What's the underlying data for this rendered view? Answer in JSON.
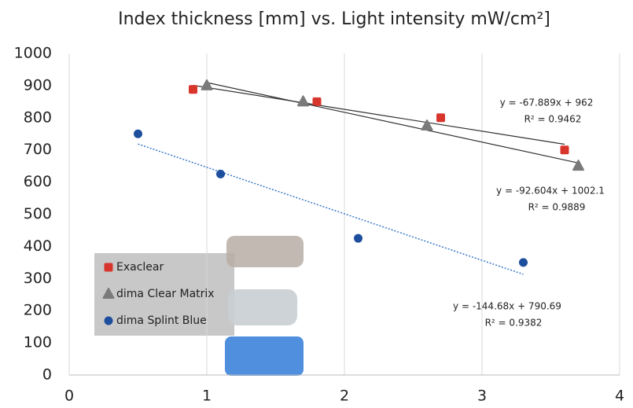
{
  "chart_data": {
    "type": "scatter",
    "title": "Index thickness [mm] vs. Light intensity mW/cm²]",
    "xlim": [
      0,
      4
    ],
    "xticks": [
      0,
      1,
      2,
      3,
      4
    ],
    "ylim": [
      0,
      1000
    ],
    "yticks": [
      0,
      100,
      200,
      300,
      400,
      500,
      600,
      700,
      800,
      900,
      1000
    ],
    "grid": "x",
    "legend": "lower left",
    "series": [
      {
        "name": "Exaclear",
        "color": "#d8352c",
        "marker": "square",
        "x": [
          0.9,
          1.8,
          2.7,
          3.6
        ],
        "values": [
          888,
          850,
          800,
          700
        ],
        "trendline": {
          "slope": -67.889,
          "intercept": 962,
          "color": "#333333",
          "style": "solid",
          "equation": "y = -67.889x + 962",
          "r2": "R² = 0.9462"
        }
      },
      {
        "name": "dima Clear Matrix",
        "color": "#7a7a7a",
        "marker": "triangle",
        "x": [
          1,
          1.7,
          2.6,
          3.7
        ],
        "values": [
          900,
          850,
          775,
          650
        ],
        "trendline": {
          "slope": -92.604,
          "intercept": 1002.1,
          "color": "#333333",
          "style": "solid",
          "equation": "y = -92.604x + 1002.1",
          "r2": "R² = 0.9889"
        }
      },
      {
        "name": "dima Splint Blue",
        "color": "#1e4f9e",
        "marker": "circle",
        "x": [
          0.5,
          1.1,
          2.1,
          3.3
        ],
        "values": [
          750,
          625,
          425,
          350
        ],
        "trendline": {
          "slope": -144.68,
          "intercept": 790.69,
          "color": "#3a78c8",
          "style": "dotted",
          "equation": "y = -144.68x + 790.69",
          "r2": "R² = 0.9382"
        }
      }
    ]
  }
}
